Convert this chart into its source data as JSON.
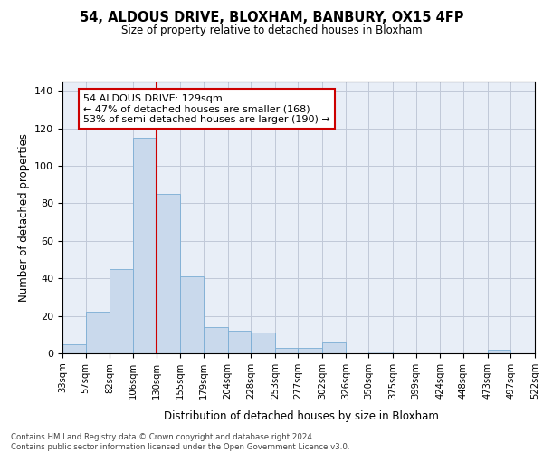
{
  "title": "54, ALDOUS DRIVE, BLOXHAM, BANBURY, OX15 4FP",
  "subtitle": "Size of property relative to detached houses in Bloxham",
  "xlabel": "Distribution of detached houses by size in Bloxham",
  "ylabel": "Number of detached properties",
  "bar_color": "#c9d9ec",
  "bar_edge_color": "#7aadd4",
  "background_color": "#ffffff",
  "axes_bg_color": "#e8eef7",
  "grid_color": "#c0c8d8",
  "vline_x": 130,
  "vline_color": "#cc0000",
  "annotation_text": "54 ALDOUS DRIVE: 129sqm\n← 47% of detached houses are smaller (168)\n53% of semi-detached houses are larger (190) →",
  "annotation_box_color": "#ffffff",
  "annotation_box_edge": "#cc0000",
  "footnote": "Contains HM Land Registry data © Crown copyright and database right 2024.\nContains public sector information licensed under the Open Government Licence v3.0.",
  "bin_edges": [
    33,
    57,
    82,
    106,
    130,
    155,
    179,
    204,
    228,
    253,
    277,
    302,
    326,
    350,
    375,
    399,
    424,
    448,
    473,
    497,
    522
  ],
  "bin_labels": [
    "33sqm",
    "57sqm",
    "82sqm",
    "106sqm",
    "130sqm",
    "155sqm",
    "179sqm",
    "204sqm",
    "228sqm",
    "253sqm",
    "277sqm",
    "302sqm",
    "326sqm",
    "350sqm",
    "375sqm",
    "399sqm",
    "424sqm",
    "448sqm",
    "473sqm",
    "497sqm",
    "522sqm"
  ],
  "counts": [
    5,
    22,
    45,
    115,
    85,
    41,
    14,
    12,
    11,
    3,
    3,
    6,
    0,
    1,
    0,
    0,
    0,
    0,
    2,
    0
  ],
  "ylim": [
    0,
    145
  ],
  "yticks": [
    0,
    20,
    40,
    60,
    80,
    100,
    120,
    140
  ]
}
